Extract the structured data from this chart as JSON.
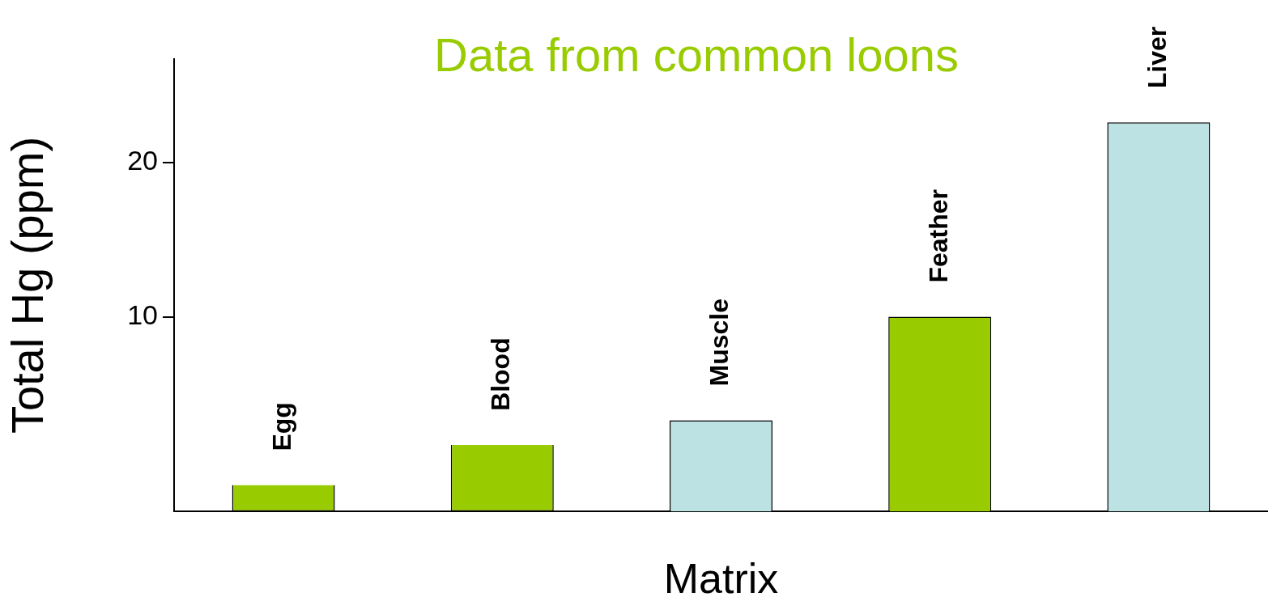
{
  "chart_data": {
    "type": "bar",
    "title": "Data from common loons",
    "xlabel": "Matrix",
    "ylabel": "Total Hg (ppm)",
    "categories": [
      "Egg",
      "Blood",
      "Muscle",
      "Feather",
      "Liver"
    ],
    "values": [
      1.7,
      4.3,
      5.9,
      12.6,
      25.2
    ],
    "base": [
      -2.6,
      -2.6,
      -2.6,
      -2.6,
      -2.6
    ],
    "colors": [
      "#99cc00",
      "#99cc00",
      "#bde2e3",
      "#99cc00",
      "#bde2e3"
    ],
    "ylim": [
      -2.6,
      26.7
    ],
    "yticks": [
      10,
      20
    ],
    "grid": false,
    "legend": false,
    "tick_labels": "y"
  }
}
